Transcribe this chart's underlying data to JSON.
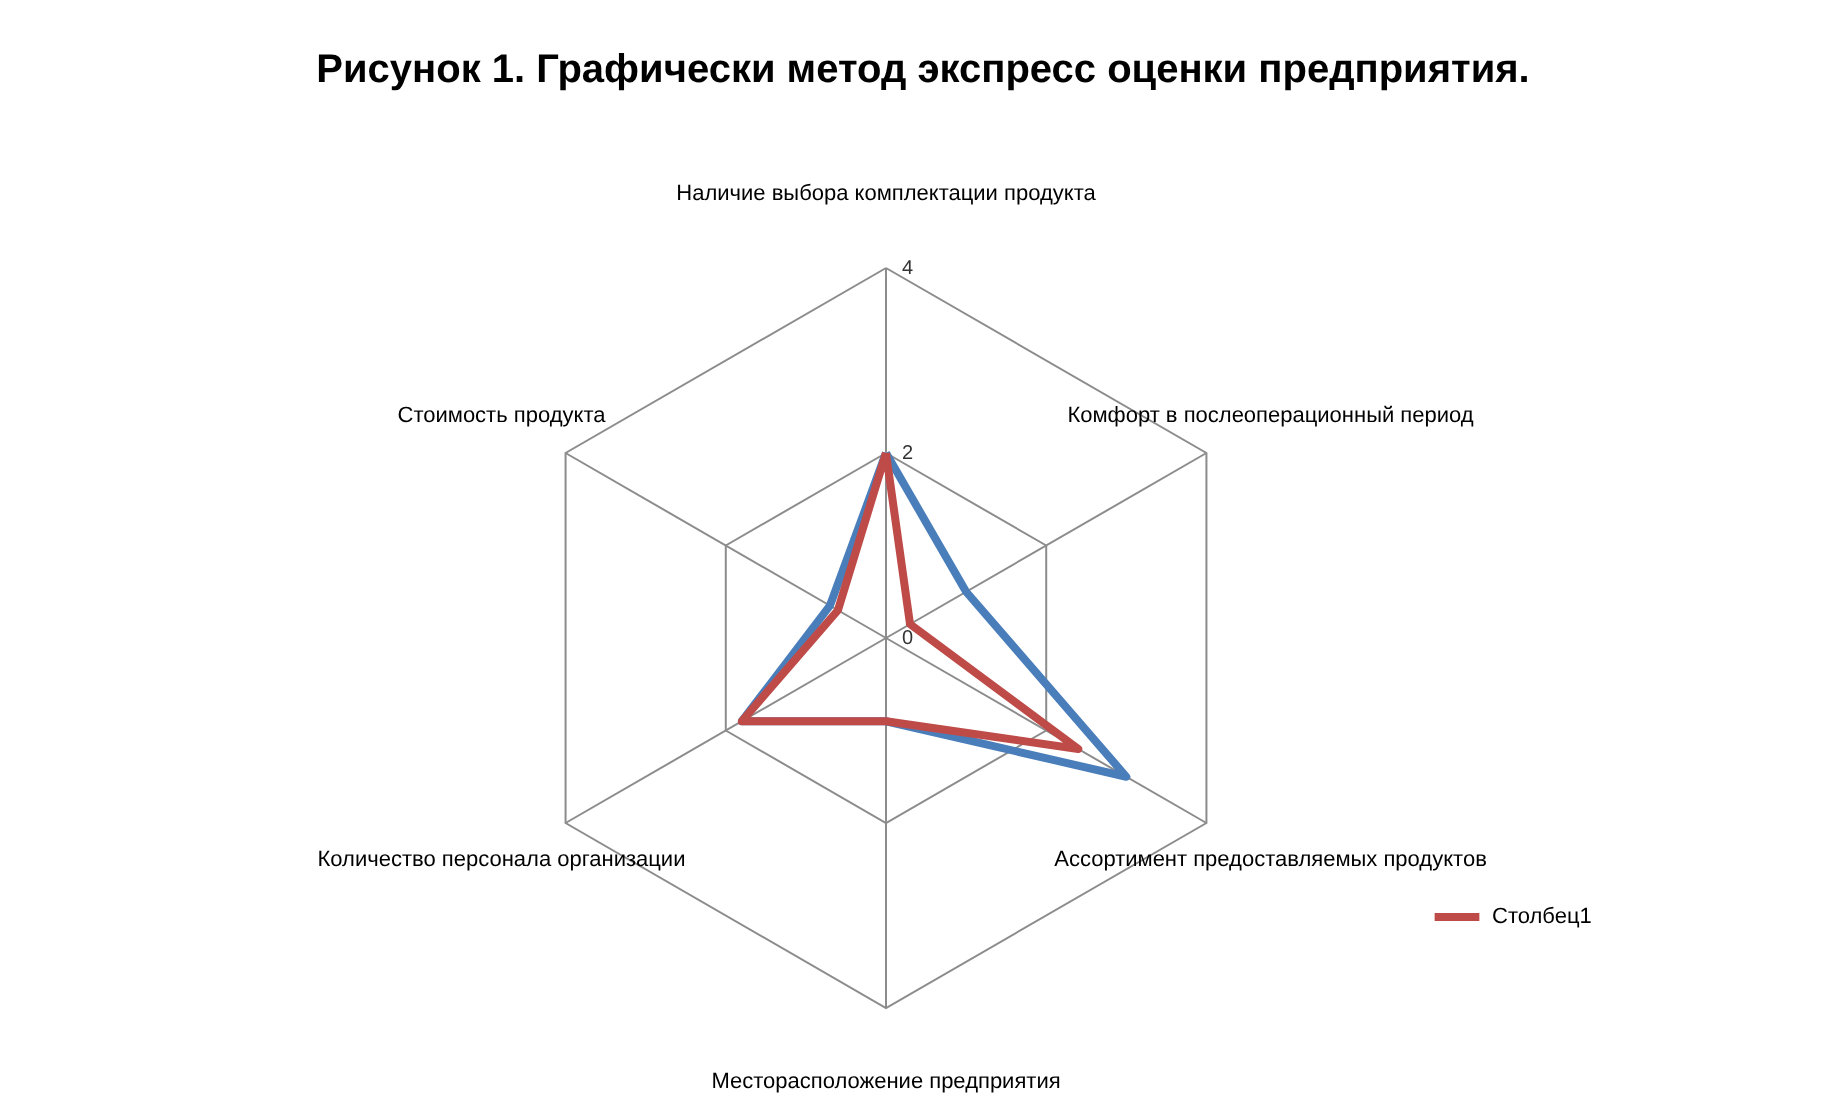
{
  "chart_data": {
    "type": "radar",
    "title": "Рисунок 1. Графически метод экспресс оценки предприятия.",
    "categories": [
      "Наличие выбора комплектации продукта",
      "Комфорт в послеоперационный период",
      "Ассортимент предоставляемых продуктов",
      "Месторасположение предприятия",
      "Количество персонала организации",
      "Стоимость продукта"
    ],
    "series": [
      {
        "color": "#4a7ebb",
        "values": [
          2,
          1,
          3,
          0.9,
          1.8,
          0.7
        ]
      },
      {
        "name": "Столбец1",
        "color": "#be4b48",
        "values": [
          2,
          0.3,
          2.4,
          0.9,
          1.8,
          0.6
        ]
      }
    ],
    "ylim": [
      0,
      4
    ],
    "yticks": [
      0,
      2,
      4
    ],
    "grid": true,
    "legend": "bottom right"
  }
}
